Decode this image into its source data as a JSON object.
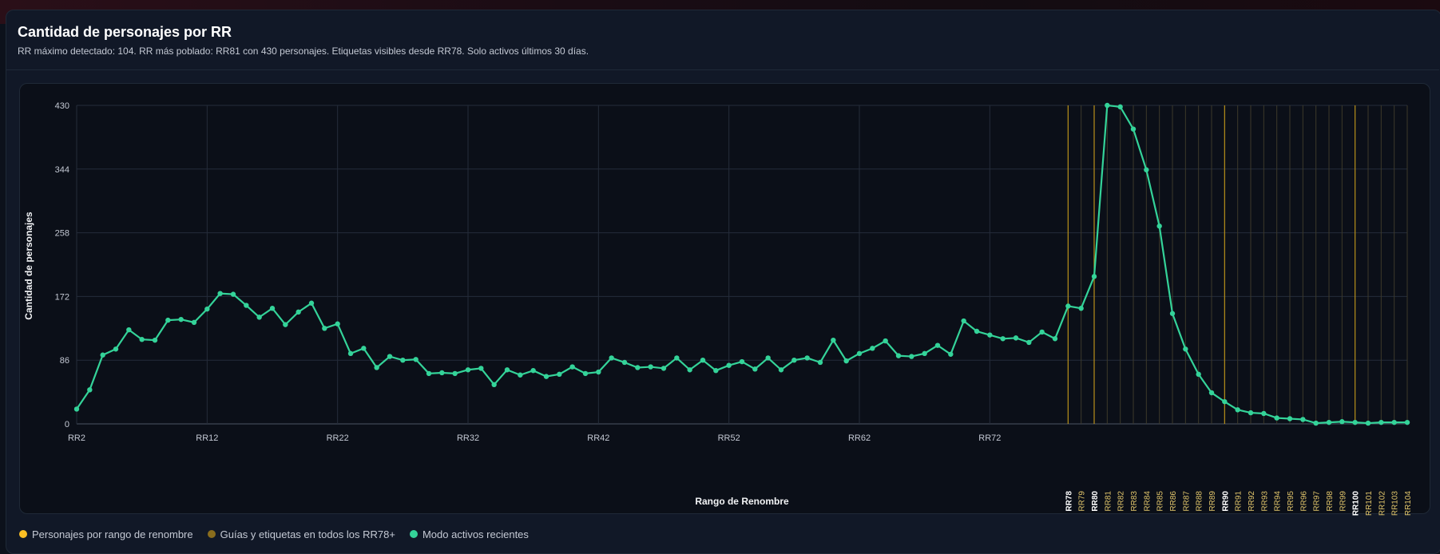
{
  "header": {
    "title": "Cantidad de personajes por RR",
    "subtitle": "RR máximo detectado: 104. RR más poblado: RR81 con 430 personajes. Etiquetas visibles desde RR78. Solo activos últimos 30 días."
  },
  "legend": [
    {
      "label": "Personajes por rango de renombre",
      "color": "#fbbf24"
    },
    {
      "label": "Guías y etiquetas en todos los RR78+",
      "color": "#8a6d1d"
    },
    {
      "label": "Modo activos recientes",
      "color": "#34d399"
    }
  ],
  "chart_data": {
    "type": "line",
    "xlabel": "Rango de Renombre",
    "ylabel": "Cantidad de personajes",
    "ylim": [
      0,
      430
    ],
    "yticks": [
      0,
      86,
      172,
      258,
      344,
      430
    ],
    "line_color": "#34d399",
    "guide_color": "#8a6d1d",
    "bright_guide_color": "#b8901a",
    "x": [
      2,
      3,
      4,
      5,
      6,
      7,
      8,
      9,
      10,
      11,
      12,
      13,
      14,
      15,
      16,
      17,
      18,
      19,
      20,
      21,
      22,
      23,
      24,
      25,
      26,
      27,
      28,
      29,
      30,
      31,
      32,
      33,
      34,
      35,
      36,
      37,
      38,
      39,
      40,
      41,
      42,
      43,
      44,
      45,
      46,
      47,
      48,
      49,
      50,
      51,
      52,
      53,
      54,
      55,
      56,
      57,
      58,
      59,
      60,
      61,
      62,
      63,
      64,
      65,
      66,
      67,
      68,
      69,
      70,
      71,
      72,
      73,
      74,
      75,
      76,
      77,
      78,
      79,
      80,
      81,
      82,
      83,
      84,
      85,
      86,
      87,
      88,
      89,
      90,
      91,
      92,
      93,
      94,
      95,
      96,
      97,
      98,
      99,
      100,
      101,
      102,
      103,
      104
    ],
    "values": [
      20,
      46,
      93,
      101,
      127,
      114,
      113,
      140,
      141,
      137,
      155,
      176,
      175,
      160,
      144,
      156,
      134,
      151,
      163,
      129,
      135,
      95,
      102,
      76,
      91,
      86,
      87,
      68,
      69,
      68,
      73,
      75,
      53,
      73,
      66,
      72,
      64,
      67,
      77,
      68,
      70,
      89,
      83,
      76,
      77,
      75,
      89,
      73,
      86,
      72,
      79,
      84,
      74,
      89,
      73,
      86,
      89,
      83,
      113,
      85,
      95,
      102,
      112,
      92,
      91,
      95,
      106,
      94,
      139,
      125,
      120,
      115,
      116,
      110,
      124,
      115,
      159,
      156,
      199,
      430,
      428,
      398,
      343,
      267,
      149,
      101,
      67,
      42,
      30,
      19,
      15,
      14,
      8,
      7,
      6,
      1,
      2,
      3,
      2,
      1,
      2,
      2,
      2
    ],
    "tick_labels_regular": [
      "RR2",
      "RR12",
      "RR22",
      "RR32",
      "RR42",
      "RR52",
      "RR62",
      "RR72"
    ],
    "tick_labels_rr78plus": [
      "RR78",
      "RR79",
      "RR80",
      "RR81",
      "RR82",
      "RR83",
      "RR84",
      "RR85",
      "RR86",
      "RR87",
      "RR88",
      "RR89",
      "RR90",
      "RR91",
      "RR92",
      "RR93",
      "RR94",
      "RR95",
      "RR96",
      "RR97",
      "RR98",
      "RR99",
      "RR100",
      "RR101",
      "RR102",
      "RR103",
      "RR104"
    ]
  }
}
